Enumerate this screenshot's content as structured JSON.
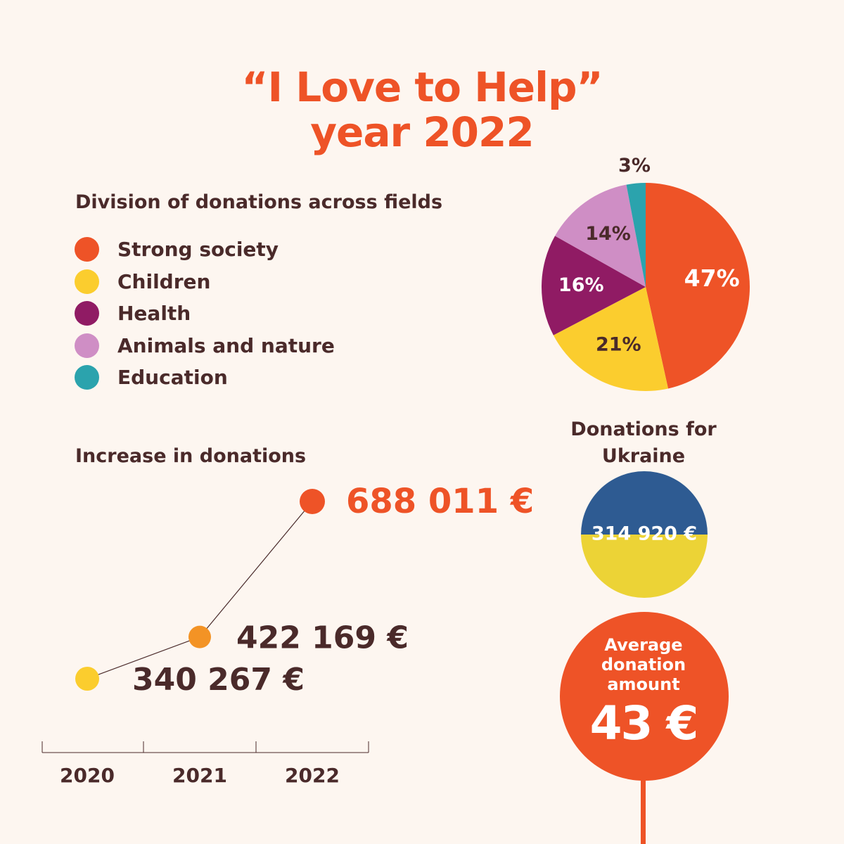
{
  "title": {
    "line1": "“I Love to Help”",
    "line2": "year 2022"
  },
  "colors": {
    "accent": "#ee5327",
    "strong_society": "#ee5327",
    "children": "#fbcd2e",
    "health": "#901b64",
    "animals_nature": "#cf8ec5",
    "education": "#2ba3ad",
    "ukraine_blue": "#2e5b92",
    "ukraine_yellow": "#ecd336",
    "dark_text": "#4a2a2a",
    "point_2021": "#f39325"
  },
  "chart_data": [
    {
      "type": "pie",
      "title": "Division of donations across fields",
      "categories": [
        "Strong society",
        "Children",
        "Health",
        "Animals and nature",
        "Education"
      ],
      "values": [
        47,
        21,
        16,
        14,
        3
      ],
      "labels": [
        "47%",
        "21%",
        "16%",
        "14%",
        "3%"
      ],
      "legend_placement": "left"
    },
    {
      "type": "line",
      "title": "Increase in donations",
      "x": [
        "2020",
        "2021",
        "2022"
      ],
      "values": [
        340267,
        422169,
        688011
      ],
      "labels": [
        "340 267 €",
        "422 169 €",
        "688 011 €"
      ]
    }
  ],
  "ukraine": {
    "title_line1": "Donations for",
    "title_line2": "Ukraine",
    "amount": "314 920 €"
  },
  "average": {
    "line1": "Average",
    "line2": "donation",
    "line3": "amount",
    "value": "43 €"
  }
}
